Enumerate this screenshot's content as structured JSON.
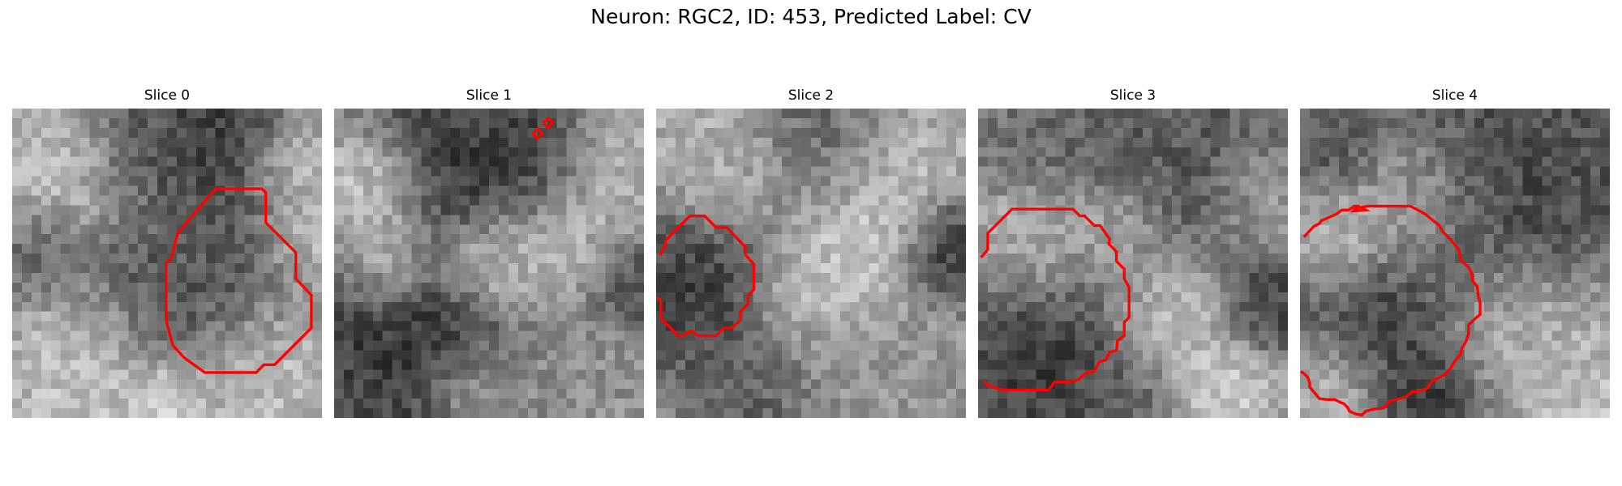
{
  "figure": {
    "title": "Neuron: RGC2, ID: 453, Predicted Label: CV"
  },
  "contour_color": "#ff0000",
  "panels": [
    {
      "title": "Slice 0"
    },
    {
      "title": "Slice 1"
    },
    {
      "title": "Slice 2"
    },
    {
      "title": "Slice 3"
    },
    {
      "title": "Slice 4"
    }
  ]
}
